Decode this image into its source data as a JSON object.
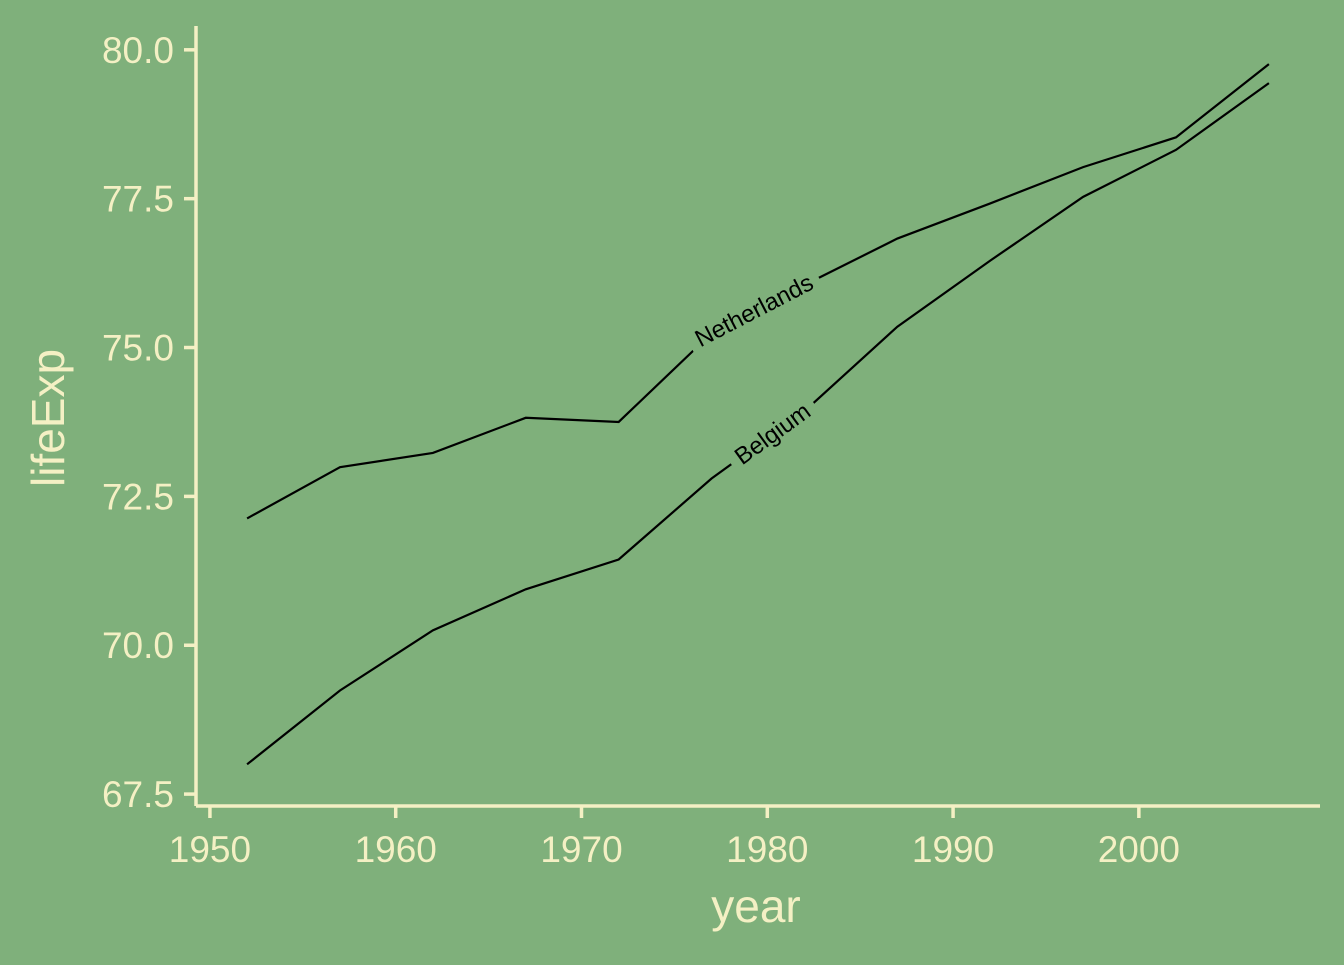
{
  "chart_data": {
    "type": "line",
    "xlabel": "year",
    "ylabel": "lifeExp",
    "xlim": [
      1949.25,
      2009.75
    ],
    "ylim": [
      67.3,
      80.4
    ],
    "x_ticks": [
      1950,
      1960,
      1970,
      1980,
      1990,
      2000
    ],
    "x_tick_labels": [
      "1950",
      "1960",
      "1970",
      "1980",
      "1990",
      "2000"
    ],
    "y_ticks": [
      67.5,
      70.0,
      72.5,
      75.0,
      77.5,
      80.0
    ],
    "y_tick_labels": [
      "67.5",
      "70.0",
      "72.5",
      "75.0",
      "77.5",
      "80.0"
    ],
    "grid": false,
    "legend": "none (direct labels on lines)",
    "x": [
      1952,
      1957,
      1962,
      1967,
      1972,
      1977,
      1982,
      1987,
      1992,
      1997,
      2002,
      2007
    ],
    "series": [
      {
        "name": "Netherlands",
        "values": [
          72.13,
          72.99,
          73.23,
          73.82,
          73.75,
          75.24,
          76.05,
          76.83,
          77.42,
          78.03,
          78.53,
          79.76
        ],
        "label_at_x": 1979.3,
        "color": "#000000"
      },
      {
        "name": "Belgium",
        "values": [
          68.0,
          69.24,
          70.25,
          70.94,
          71.44,
          72.8,
          73.93,
          75.35,
          76.46,
          77.53,
          78.32,
          79.44
        ],
        "label_at_x": 1980.3,
        "color": "#000000"
      }
    ],
    "colors": {
      "background": "#7fb07b",
      "axis_and_text": "#f4f0c4",
      "lines": "#000000"
    }
  }
}
